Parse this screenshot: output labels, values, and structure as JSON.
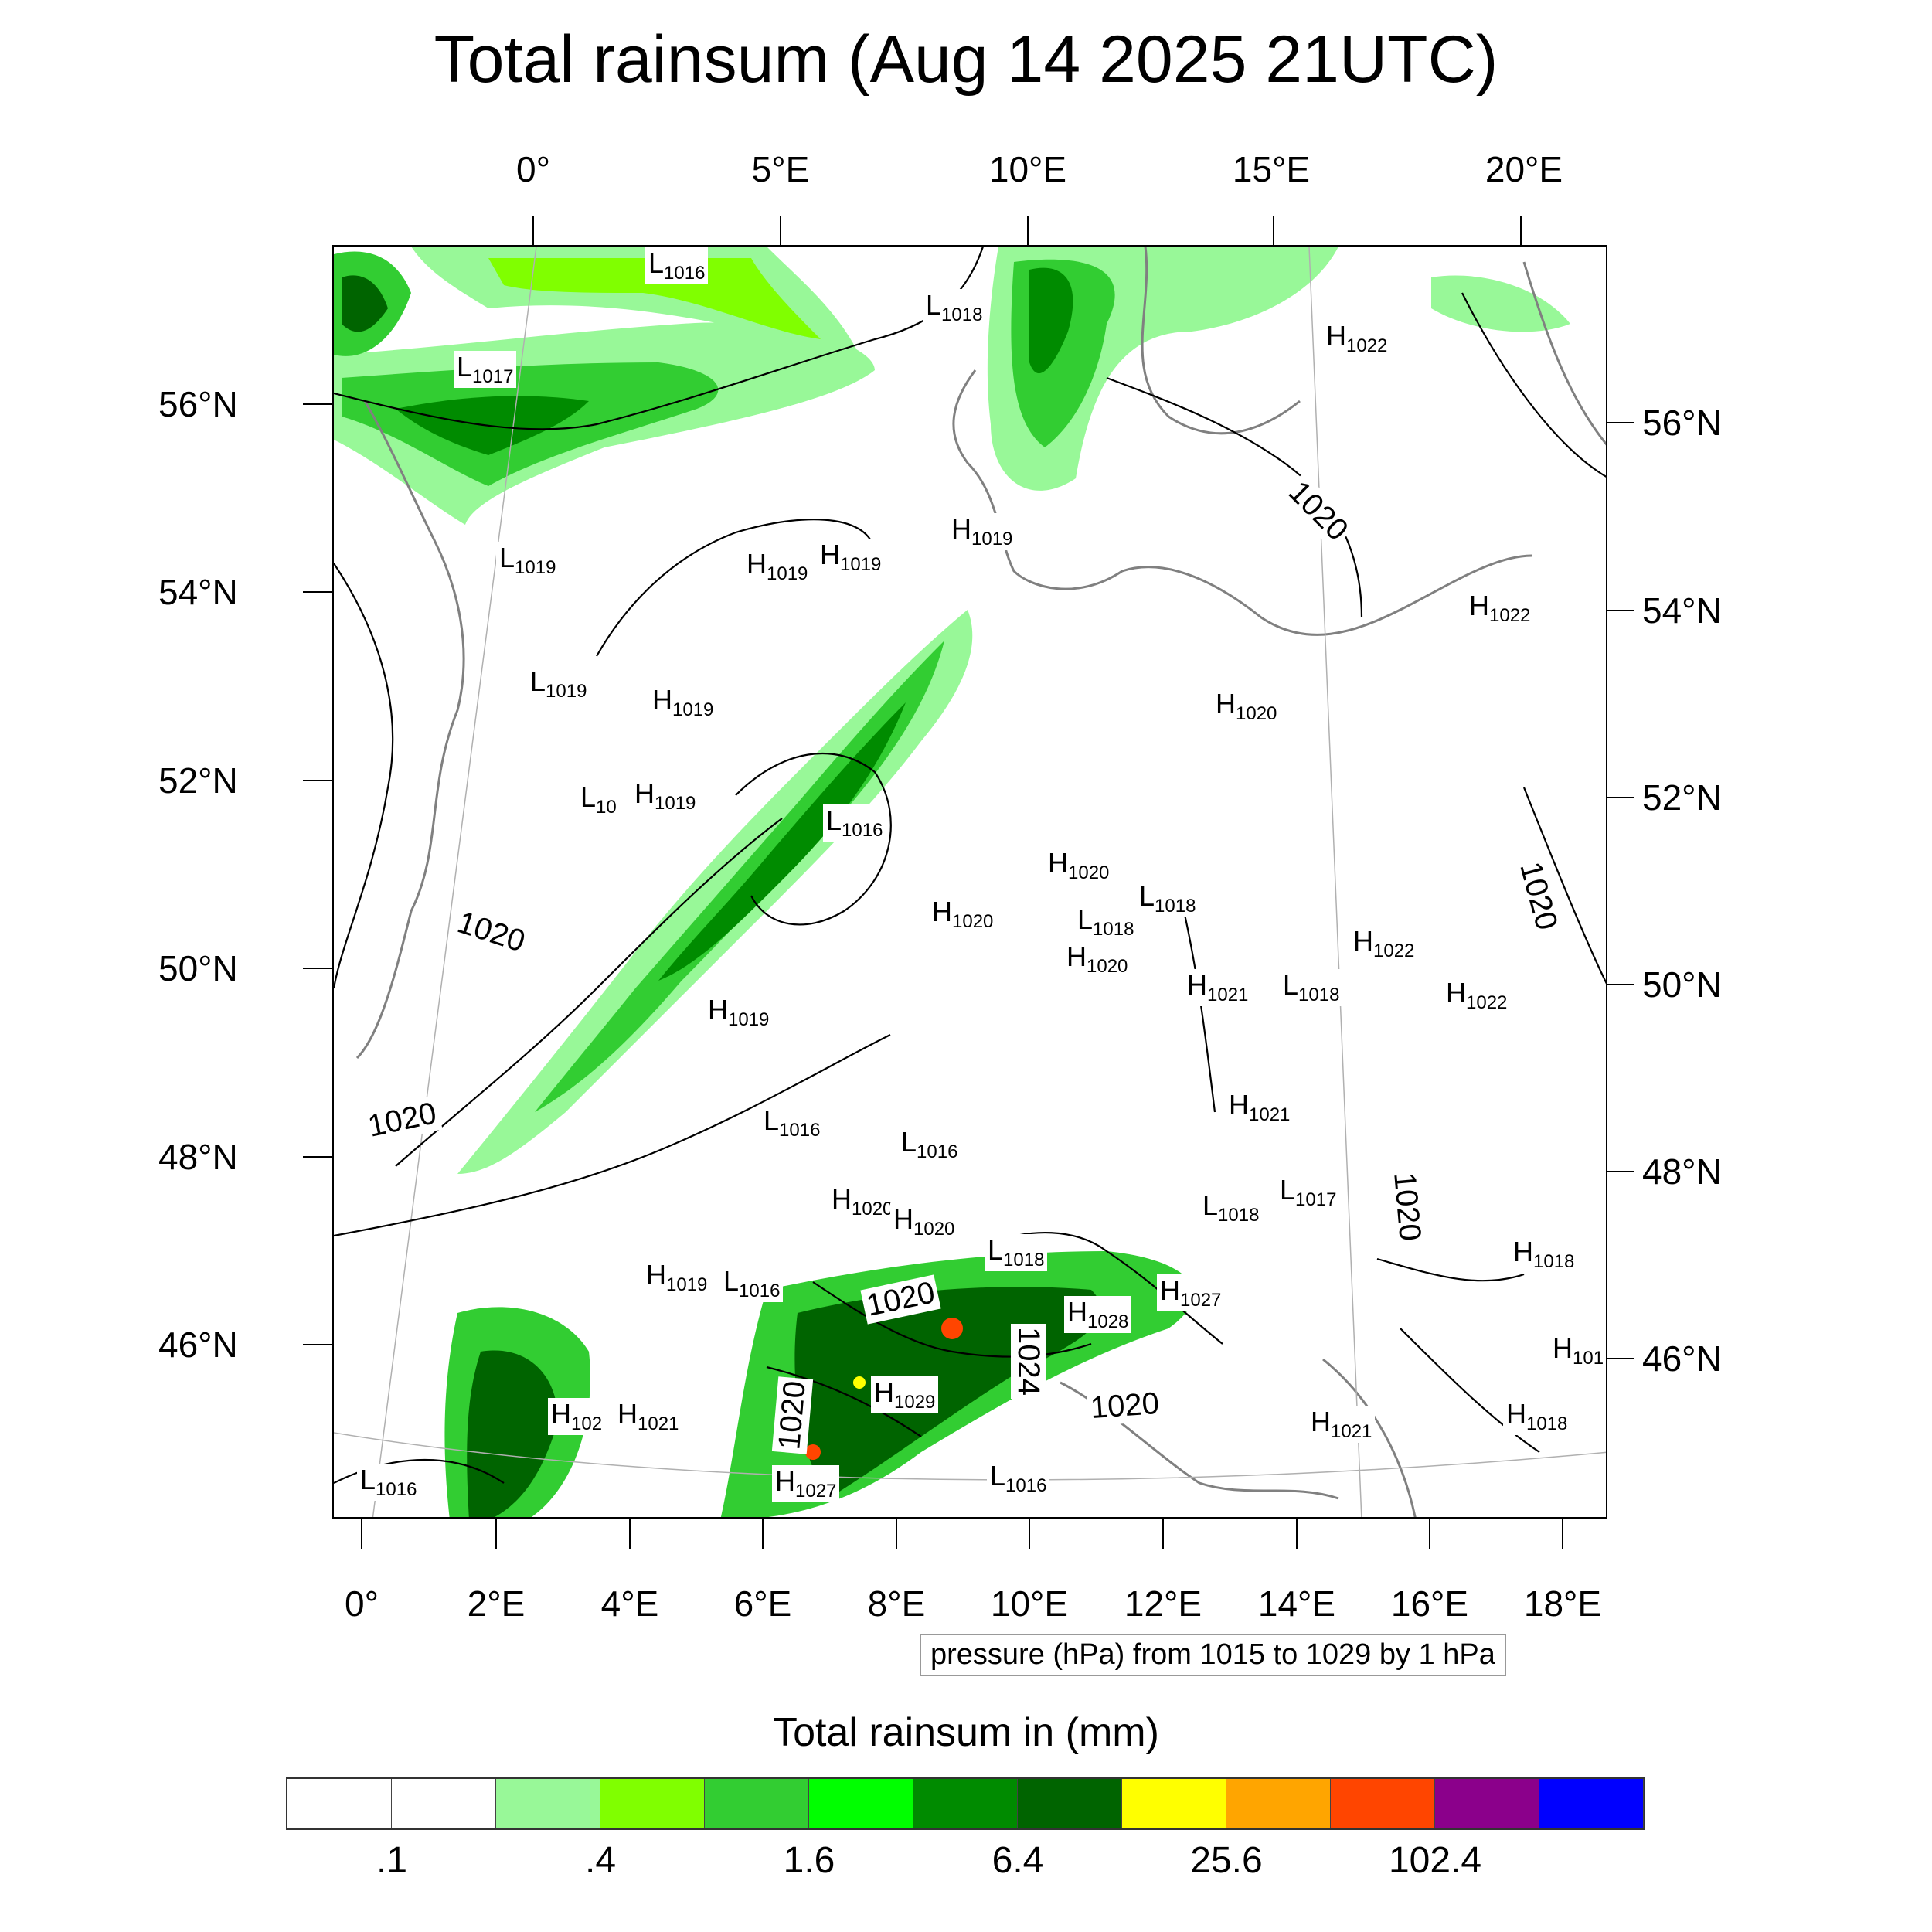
{
  "title": "Total rainsum (Aug 14 2025 21UTC)",
  "axes": {
    "top_ticks": [
      "0°",
      "5°E",
      "10°E",
      "15°E",
      "20°E"
    ],
    "bottom_ticks": [
      "0°",
      "2°E",
      "4°E",
      "6°E",
      "8°E",
      "10°E",
      "12°E",
      "14°E",
      "16°E",
      "18°E"
    ],
    "left_ticks": [
      "56°N",
      "54°N",
      "52°N",
      "50°N",
      "48°N",
      "46°N"
    ],
    "right_ticks": [
      "56°N",
      "54°N",
      "52°N",
      "50°N",
      "48°N",
      "46°N"
    ]
  },
  "pressure_labels": [
    {
      "t": "L",
      "v": "1016"
    },
    {
      "t": "L",
      "v": "1018"
    },
    {
      "t": "H",
      "v": "1022"
    },
    {
      "t": "L",
      "v": "1017"
    },
    {
      "t": "L",
      "v": "1019"
    },
    {
      "t": "H",
      "v": "1019"
    },
    {
      "t": "H",
      "v": "1019"
    },
    {
      "t": "H",
      "v": "1019"
    },
    {
      "t": "H",
      "v": "1022"
    },
    {
      "t": "L",
      "v": "1019"
    },
    {
      "t": "H",
      "v": "1019"
    },
    {
      "t": "H",
      "v": "1020"
    },
    {
      "t": "L",
      "v": "10"
    },
    {
      "t": "H",
      "v": "1019"
    },
    {
      "t": "L",
      "v": "1016"
    },
    {
      "t": "H",
      "v": "1020"
    },
    {
      "t": "H",
      "v": "1020"
    },
    {
      "t": "L",
      "v": "1018"
    },
    {
      "t": "L",
      "v": "1018"
    },
    {
      "t": "H",
      "v": "1022"
    },
    {
      "t": "H",
      "v": "1020"
    },
    {
      "t": "H",
      "v": "1021"
    },
    {
      "t": "L",
      "v": "1018"
    },
    {
      "t": "H",
      "v": "1022"
    },
    {
      "t": "H",
      "v": "1019"
    },
    {
      "t": "H",
      "v": "1021"
    },
    {
      "t": "L",
      "v": "1016"
    },
    {
      "t": "L",
      "v": "1016"
    },
    {
      "t": "H",
      "v": "1020"
    },
    {
      "t": "H",
      "v": "1020"
    },
    {
      "t": "L",
      "v": "1018"
    },
    {
      "t": "L",
      "v": "1017"
    },
    {
      "t": "L",
      "v": "1018"
    },
    {
      "t": "H",
      "v": "1018"
    },
    {
      "t": "H",
      "v": "1019"
    },
    {
      "t": "L",
      "v": "1016"
    },
    {
      "t": "H",
      "v": "1027"
    },
    {
      "t": "H",
      "v": "1028"
    },
    {
      "t": "H",
      "v": "101"
    },
    {
      "t": "H",
      "v": "102"
    },
    {
      "t": "H",
      "v": "1021"
    },
    {
      "t": "H",
      "v": "1029"
    },
    {
      "t": "H",
      "v": "1021"
    },
    {
      "t": "H",
      "v": "1018"
    },
    {
      "t": "L",
      "v": "1016"
    },
    {
      "t": "H",
      "v": "1027"
    },
    {
      "t": "L",
      "v": "1016"
    }
  ],
  "contour_labels": [
    "1020",
    "1020",
    "1020",
    "1020",
    "1020",
    "1020",
    "1024",
    "1020",
    "1020"
  ],
  "info_box": "pressure (hPa) from 1015 to 1029 by 1 hPa",
  "legend": {
    "title": "Total rainsum in (mm)",
    "colors": [
      "#ffffff",
      "#ffffff",
      "#98f898",
      "#80ff00",
      "#32cd32",
      "#00ff00",
      "#008b00",
      "#006400",
      "#ffff00",
      "#ffa500",
      "#ff4500",
      "#8b008b",
      "#0000ff"
    ],
    "labels": [
      ".1",
      ".4",
      "1.6",
      "6.4",
      "25.6",
      "102.4"
    ]
  }
}
